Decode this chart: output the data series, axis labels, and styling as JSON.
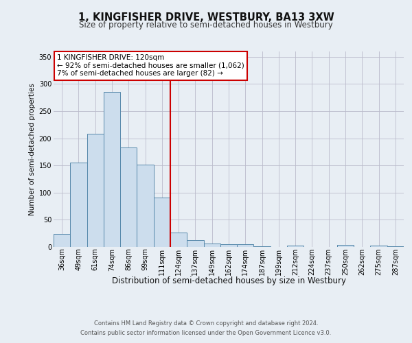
{
  "title_line1": "1, KINGFISHER DRIVE, WESTBURY, BA13 3XW",
  "title_line2": "Size of property relative to semi-detached houses in Westbury",
  "xlabel": "Distribution of semi-detached houses by size in Westbury",
  "ylabel": "Number of semi-detached properties",
  "categories": [
    "36sqm",
    "49sqm",
    "61sqm",
    "74sqm",
    "86sqm",
    "99sqm",
    "111sqm",
    "124sqm",
    "137sqm",
    "149sqm",
    "162sqm",
    "174sqm",
    "187sqm",
    "199sqm",
    "212sqm",
    "224sqm",
    "237sqm",
    "250sqm",
    "262sqm",
    "275sqm",
    "287sqm"
  ],
  "values": [
    24,
    156,
    208,
    286,
    183,
    152,
    91,
    26,
    13,
    6,
    5,
    5,
    1,
    0,
    3,
    0,
    0,
    4,
    0,
    2,
    1
  ],
  "bar_color": "#ccdded",
  "bar_edge_color": "#5588aa",
  "vline_color": "#cc0000",
  "annotation_title": "1 KINGFISHER DRIVE: 120sqm",
  "annotation_line2": "← 92% of semi-detached houses are smaller (1,062)",
  "annotation_line3": "7% of semi-detached houses are larger (82) →",
  "annotation_box_color": "#ffffff",
  "annotation_box_edge": "#cc0000",
  "ylim": [
    0,
    360
  ],
  "yticks": [
    0,
    50,
    100,
    150,
    200,
    250,
    300,
    350
  ],
  "footer_line1": "Contains HM Land Registry data © Crown copyright and database right 2024.",
  "footer_line2": "Contains public sector information licensed under the Open Government Licence v3.0.",
  "bg_color": "#e8eef4",
  "plot_bg_color": "#e8eef4",
  "title1_fontsize": 10.5,
  "title2_fontsize": 8.5,
  "xlabel_fontsize": 8.5,
  "ylabel_fontsize": 7.5,
  "tick_fontsize": 7,
  "annotation_fontsize": 7.5,
  "footer_fontsize": 6.0
}
